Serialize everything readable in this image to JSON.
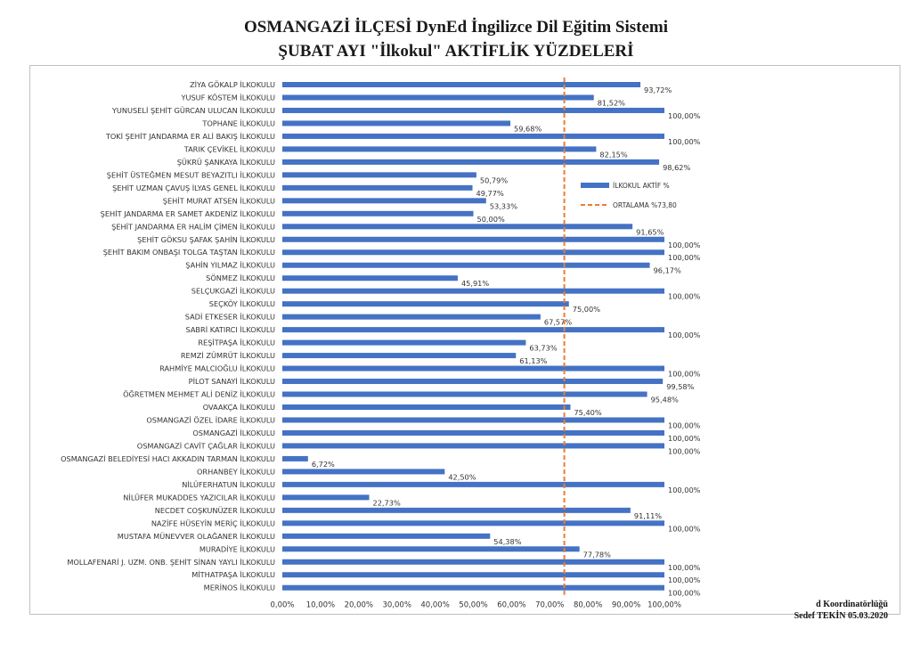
{
  "page": {
    "title_line1": "OSMANGAZİ İLÇESİ DynEd İngilizce Dil Eğitim Sistemi",
    "title_line2": "ŞUBAT AYI \"İlkokul\" AKTİFLİK YÜZDELERİ",
    "footer_line1": "d Koordinatörlüğü",
    "footer_line2": "Sedef TEKİN 05.03.2020"
  },
  "colors": {
    "bar": "#4472C4",
    "average_line": "#ED7D31",
    "frame": "#BFBFBF"
  },
  "chart_data": {
    "type": "bar",
    "orientation": "horizontal",
    "categories": [
      "ZİYA GÖKALP İLKOKULU",
      "YUSUF KÖSTEM İLKOKULU",
      "YUNUSELİ ŞEHİT GÜRCAN ULUCAN İLKOKULU",
      "TOPHANE İLKOKULU",
      "TOKİ ŞEHİT JANDARMA ER ALİ BAKIŞ İLKOKULU",
      "TARIK ÇEVİKEL İLKOKULU",
      "ŞÜKRÜ ŞANKAYA İLKOKULU",
      "ŞEHİT ÜSTEĞMEN MESUT BEYAZITLI İLKOKULU",
      "ŞEHİT UZMAN ÇAVUŞ İLYAS GENEL İLKOKULU",
      "ŞEHİT MURAT ATSEN İLKOKULU",
      "ŞEHİT JANDARMA ER SAMET AKDENİZ İLKOKULU",
      "ŞEHİT JANDARMA ER HALİM ÇİMEN İLKOKULU",
      "ŞEHİT GÖKSU ŞAFAK ŞAHİN İLKOKULU",
      "ŞEHİT BAKIM ONBAŞI TOLGA TAŞTAN İLKOKULU",
      "ŞAHİN YILMAZ İLKOKULU",
      "SÖNMEZ İLKOKULU",
      "SELÇUKGAZİ İLKOKULU",
      "SEÇKÖY İLKOKULU",
      "SADİ ETKESER İLKOKULU",
      "SABRİ KATIRCI İLKOKULU",
      "REŞİTPAŞA İLKOKULU",
      "REMZİ ZÜMRÜT İLKOKULU",
      "RAHMİYE MALCIOĞLU İLKOKULU",
      "PİLOT SANAYİ İLKOKULU",
      "ÖĞRETMEN MEHMET ALİ DENİZ İLKOKULU",
      "OVAAKÇA İLKOKULU",
      "OSMANGAZİ ÖZEL İDARE İLKOKULU",
      "OSMANGAZİ İLKOKULU",
      "OSMANGAZİ CAVİT ÇAĞLAR İLKOKULU",
      "OSMANGAZİ BELEDİYESİ HACI AKKADIN TARMAN İLKOKULU",
      "ORHANBEY İLKOKULU",
      "NİLÜFERHATUN İLKOKULU",
      "NİLÜFER MUKADDES YAZICILAR İLKOKULU",
      "NECDET COŞKUNÜZER İLKOKULU",
      "NAZİFE HÜSEYİN MERİÇ İLKOKULU",
      "MUSTAFA MÜNEVVER OLAĞANER İLKOKULU",
      "MURADİYE İLKOKULU",
      "MOLLAFENARİ J. UZM. ONB. ŞEHİT SİNAN YAYLI İLKOKULU",
      "MİTHATPAŞA İLKOKULU",
      "MERİNOS İLKOKULU"
    ],
    "values": [
      93.72,
      81.52,
      100,
      59.68,
      100,
      82.15,
      98.62,
      50.79,
      49.77,
      53.33,
      50.0,
      91.65,
      100,
      100,
      96.17,
      45.91,
      100,
      75.0,
      67.57,
      100,
      63.73,
      61.13,
      100,
      99.58,
      95.48,
      75.4,
      100,
      100,
      100,
      6.72,
      42.5,
      100,
      22.73,
      91.11,
      100,
      54.38,
      77.78,
      100,
      100,
      100
    ],
    "value_labels": [
      "93,72%",
      "81,52%",
      "100,00%",
      "59,68%",
      "100,00%",
      "82,15%",
      "98,62%",
      "50,79%",
      "49,77%",
      "53,33%",
      "50,00%",
      "91,65%",
      "100,00%",
      "100,00%",
      "96,17%",
      "45,91%",
      "100,00%",
      "75,00%",
      "67,57%",
      "100,00%",
      "63,73%",
      "61,13%",
      "100,00%",
      "99,58%",
      "95,48%",
      "75,40%",
      "100,00%",
      "100,00%",
      "100,00%",
      "6,72%",
      "42,50%",
      "100,00%",
      "22,73%",
      "91,11%",
      "100,00%",
      "54,38%",
      "77,78%",
      "100,00%",
      "100,00%",
      "100,00%"
    ],
    "x_ticks": [
      0,
      10,
      20,
      30,
      40,
      50,
      60,
      70,
      80,
      90,
      100
    ],
    "x_tick_labels": [
      "0,00%",
      "10,00%",
      "20,00%",
      "30,00%",
      "40,00%",
      "50,00%",
      "60,00%",
      "70,00%",
      "80,00%",
      "90,00%",
      "100,00%"
    ],
    "xlim": [
      0,
      100
    ],
    "average": 73.8,
    "legend": {
      "position": "right-inside",
      "series_label": "İLKOKUL AKTİF %",
      "average_label": "ORTALAMA %73,80"
    },
    "grid": false
  }
}
